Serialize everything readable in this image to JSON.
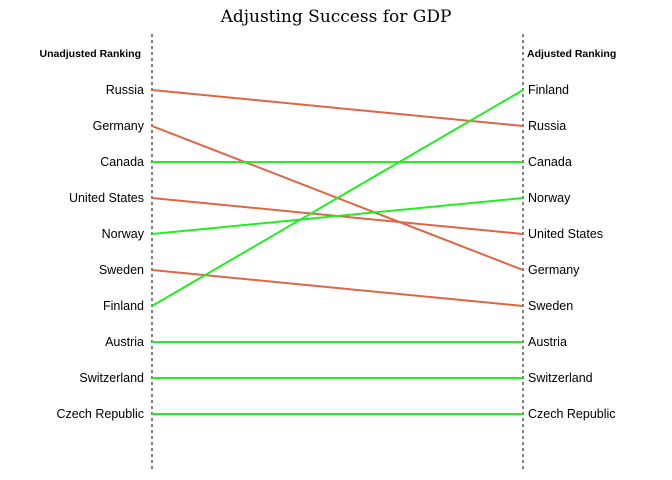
{
  "chart_data": {
    "type": "slope",
    "title": "Adjusting Success for GDP",
    "left_header": "Unadjusted Ranking",
    "right_header": "Adjusted Ranking",
    "colors": {
      "up_or_same": "#22ee22",
      "down": "#dd6644"
    },
    "series": [
      {
        "name": "Russia",
        "unadjusted_rank": 1,
        "adjusted_rank": 2,
        "left_label": "Russia",
        "right_label": "Russia"
      },
      {
        "name": "Germany",
        "unadjusted_rank": 2,
        "adjusted_rank": 6,
        "left_label": "Germany",
        "right_label": "Germany"
      },
      {
        "name": "Canada",
        "unadjusted_rank": 3,
        "adjusted_rank": 3,
        "left_label": "Canada",
        "right_label": "Canada"
      },
      {
        "name": "United States",
        "unadjusted_rank": 4,
        "adjusted_rank": 5,
        "left_label": "United States",
        "right_label": "United States"
      },
      {
        "name": "Norway",
        "unadjusted_rank": 5,
        "adjusted_rank": 4,
        "left_label": "Norway",
        "right_label": "Norway"
      },
      {
        "name": "Sweden",
        "unadjusted_rank": 6,
        "adjusted_rank": 7,
        "left_label": "Sweden",
        "right_label": "Sweden"
      },
      {
        "name": "Finland",
        "unadjusted_rank": 7,
        "adjusted_rank": 1,
        "left_label": "Finland",
        "right_label": "Finland"
      },
      {
        "name": "Austria",
        "unadjusted_rank": 8,
        "adjusted_rank": 8,
        "left_label": "Austria",
        "right_label": "Austria"
      },
      {
        "name": "Switzerland",
        "unadjusted_rank": 9,
        "adjusted_rank": 9,
        "left_label": "Switzerland",
        "right_label": "Switzerland"
      },
      {
        "name": "Czech Republic",
        "unadjusted_rank": 10,
        "adjusted_rank": 10,
        "left_label": "Czech Republic",
        "right_label": "Czech Republic"
      }
    ],
    "grid": false,
    "legend": "none"
  }
}
